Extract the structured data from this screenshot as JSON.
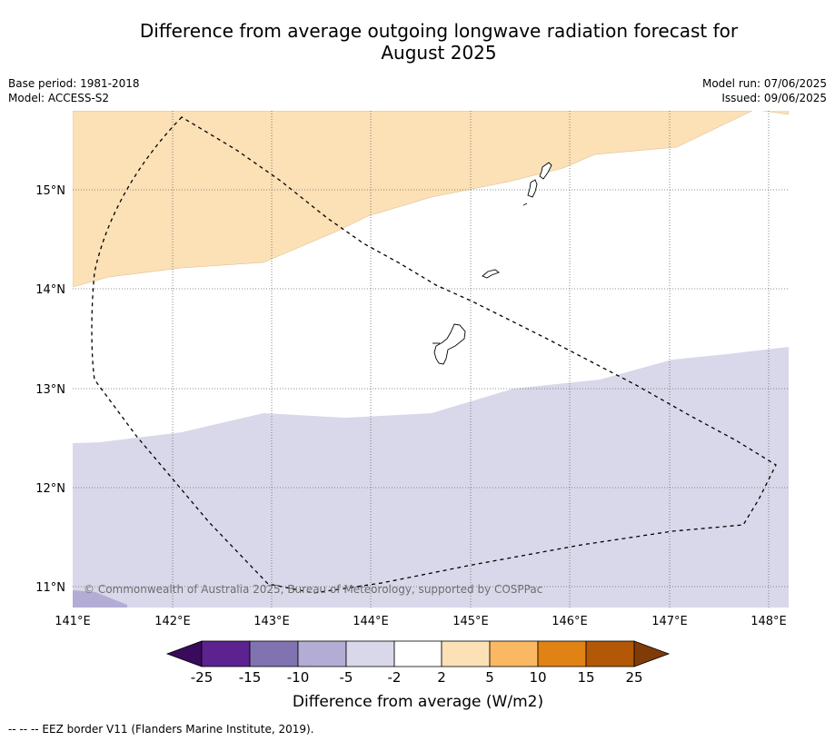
{
  "header": {
    "title_line1": "Difference from average outgoing longwave radiation forecast for",
    "title_line2": "August 2025",
    "base_period": "Base period: 1981-2018",
    "model": "Model: ACCESS-S2",
    "model_run": "Model run: 07/06/2025",
    "issued": "Issued: 09/06/2025"
  },
  "map": {
    "lon_ticks": [
      "141°E",
      "142°E",
      "143°E",
      "144°E",
      "145°E",
      "146°E",
      "147°E",
      "148°E"
    ],
    "lat_ticks": [
      "15°N",
      "14°N",
      "13°N",
      "12°N",
      "11°N"
    ],
    "copyright": "© Commonwealth of Australia 2025, Bureau of Meteorology, supported by COSPPac",
    "colors": {
      "positive_2_5": "#fce0b6",
      "negative_2_5": "#d8d8ea",
      "negative_5_10": "#b3acd4",
      "coast": "#000000"
    }
  },
  "colorbar": {
    "label": "Difference from average (W/m2)",
    "ticks": [
      "-25",
      "-15",
      "-10",
      "-5",
      "-2",
      "2",
      "5",
      "10",
      "15",
      "25"
    ],
    "colors": [
      "#3a0a5c",
      "#5c2290",
      "#8073b0",
      "#b3acd4",
      "#d8d8ea",
      "#ffffff",
      "#fce0b6",
      "#fbb862",
      "#e08214",
      "#b35806",
      "#7f3b08"
    ]
  },
  "footer": {
    "legend": "--  --  -- EEZ border V11 (Flanders Marine Institute, 2019)."
  }
}
